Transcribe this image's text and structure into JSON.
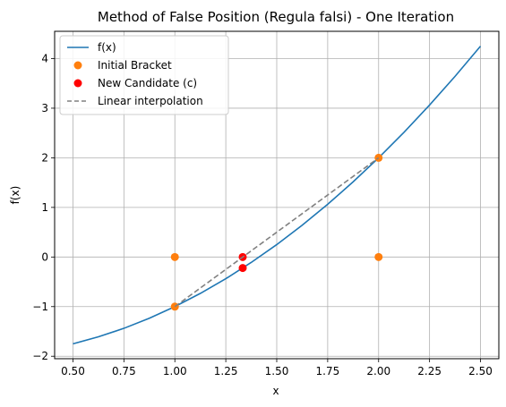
{
  "chart_data": {
    "type": "line",
    "title": "Method of False Position (Regula falsi) - One Iteration",
    "xlabel": "x",
    "ylabel": "f(x)",
    "xlim": [
      0.41,
      2.59
    ],
    "ylim": [
      -2.05,
      4.55
    ],
    "xticks": [
      0.5,
      0.75,
      1.0,
      1.25,
      1.5,
      1.75,
      2.0,
      2.25,
      2.5
    ],
    "xtick_labels": [
      "0.50",
      "0.75",
      "1.00",
      "1.25",
      "1.50",
      "1.75",
      "2.00",
      "2.25",
      "2.50"
    ],
    "yticks": [
      -2,
      -1,
      0,
      1,
      2,
      3,
      4
    ],
    "ytick_labels": [
      "−2",
      "−1",
      "0",
      "1",
      "2",
      "3",
      "4"
    ],
    "grid": true,
    "legend_position": "top-left",
    "series": [
      {
        "name": "f(x)",
        "kind": "line",
        "color": "#1f77b4",
        "x": [
          0.5,
          0.625,
          0.75,
          0.875,
          1.0,
          1.125,
          1.25,
          1.375,
          1.5,
          1.625,
          1.75,
          1.875,
          2.0,
          2.125,
          2.25,
          2.375,
          2.5
        ],
        "y": [
          -1.75,
          -1.609,
          -1.438,
          -1.234,
          -1.0,
          -0.734,
          -0.438,
          -0.109,
          0.25,
          0.641,
          1.063,
          1.516,
          2.0,
          2.516,
          3.063,
          3.641,
          4.25
        ]
      },
      {
        "name": "Initial Bracket",
        "kind": "scatter",
        "color": "#ff7f0e",
        "x": [
          1.0,
          2.0,
          1.0,
          2.0
        ],
        "y": [
          -1.0,
          2.0,
          0.0,
          0.0
        ]
      },
      {
        "name": "New Candidate (c)",
        "kind": "scatter",
        "color": "#ff0000",
        "x": [
          1.333,
          1.333
        ],
        "y": [
          0.0,
          -0.222
        ]
      },
      {
        "name": "Linear interpolation",
        "kind": "dashed-line",
        "color": "#808080",
        "x": [
          1.0,
          2.0
        ],
        "y": [
          -1.0,
          2.0
        ]
      }
    ]
  }
}
